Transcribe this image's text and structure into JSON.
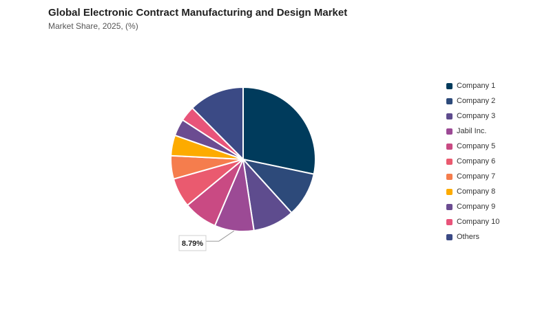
{
  "header": {
    "title": "Global Electronic Contract Manufacturing and Design Market",
    "subtitle": "Market Share, 2025, (%)"
  },
  "chart_data": {
    "type": "pie",
    "title": "Global Electronic Contract Manufacturing and Design Market",
    "subtitle": "Market Share, 2025, (%)",
    "legend_position": "right",
    "categories": [
      "Company 1",
      "Company 2",
      "Company 3",
      "Jabil Inc.",
      "Company 5",
      "Company 6",
      "Company 7",
      "Company 8",
      "Company 9",
      "Company 10",
      "Others"
    ],
    "values": [
      28.3,
      10.0,
      9.3,
      8.79,
      7.6,
      6.6,
      5.2,
      4.6,
      3.8,
      3.4,
      12.4
    ],
    "colors": [
      "#003b5c",
      "#2d4a7a",
      "#5e4c8e",
      "#9c4a95",
      "#c94a83",
      "#ea5a6f",
      "#f57d4d",
      "#fdab00",
      "#6b4c91",
      "#e8547a",
      "#3b4a85"
    ],
    "annotations": [
      {
        "category": "Jabil Inc.",
        "label": "8.79%"
      }
    ]
  }
}
